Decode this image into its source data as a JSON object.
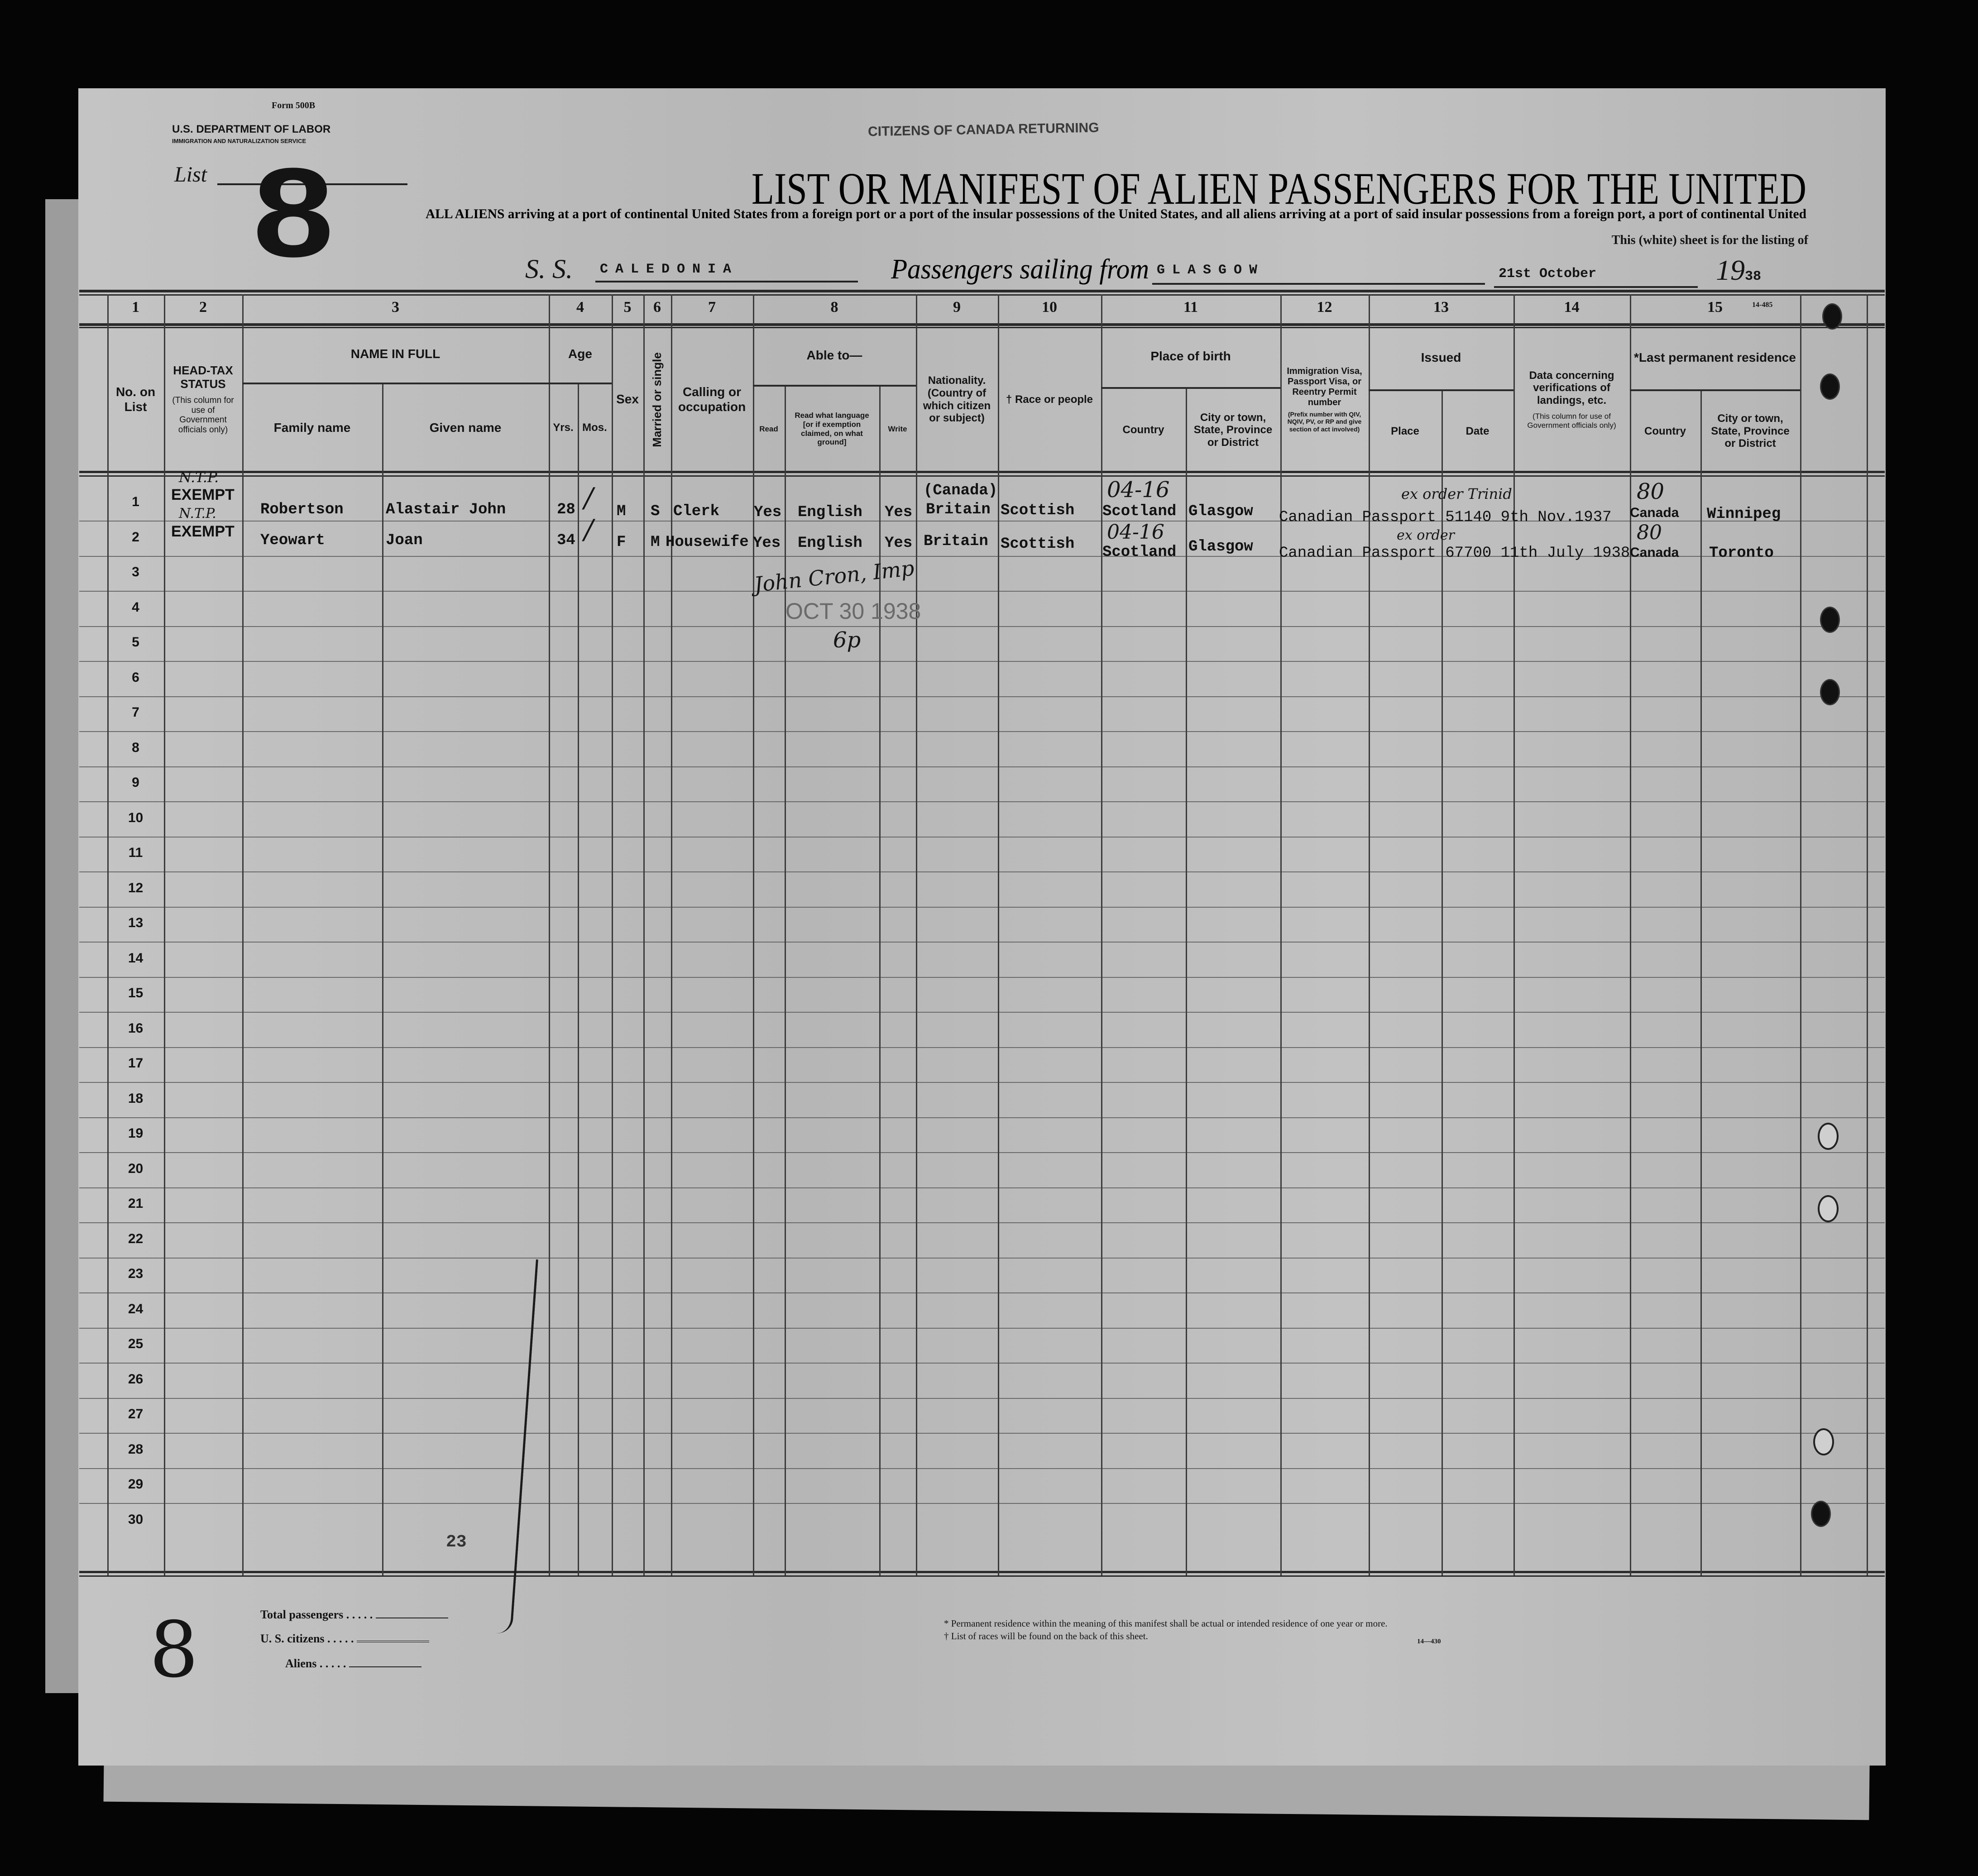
{
  "form": {
    "form_number": "Form 500B",
    "department": "U.S. DEPARTMENT OF LABOR",
    "service": "IMMIGRATION AND NATURALIZATION SERVICE",
    "list_label": "List",
    "list_number": "8",
    "stamp_top": "CITIZENS OF CANADA RETURNING",
    "title": "LIST OR MANIFEST OF ALIEN PASSENGERS FOR THE UNITED",
    "subtitle": "ALL ALIENS arriving at a port of continental United States from a foreign port or a port of the insular possessions of the United States, and all aliens arriving at a port of said insular possessions from a foreign port, a port of continental United",
    "subtitle2": "This (white) sheet is for the listing of",
    "corner_code": "14-485"
  },
  "voyage": {
    "ss_label": "S. S.",
    "ship": "CALEDONIA",
    "sailing_label": "Passengers sailing from",
    "port": "GLASGOW",
    "date": "21st October",
    "year_prefix": "19",
    "year_suffix": "38"
  },
  "column_numbers": [
    "1",
    "2",
    "3",
    "4",
    "5",
    "6",
    "7",
    "8",
    "9",
    "10",
    "11",
    "12",
    "13",
    "14",
    "15"
  ],
  "headers": {
    "no_on_list": "No. on List",
    "head_tax": "HEAD-TAX STATUS",
    "head_tax_note": "(This column for use of Government officials only)",
    "name_in_full": "NAME IN FULL",
    "family_name": "Family name",
    "given_name": "Given name",
    "age": "Age",
    "yrs": "Yrs.",
    "mos": "Mos.",
    "sex": "Sex",
    "married": "Married or single",
    "calling": "Calling or occupation",
    "able_to": "Able to—",
    "read": "Read",
    "read_language": "Read what language [or if exemption claimed, on what ground]",
    "write": "Write",
    "nationality": "Nationality. (Country of which citizen or subject)",
    "race": "† Race or people",
    "place_of_birth": "Place of birth",
    "pob_country": "Country",
    "pob_city": "City or town, State, Province or District",
    "visa": "Immigration Visa, Passport Visa, or Reentry Permit number",
    "visa_note": "(Prefix number with QIV, NQIV, PV, or RP and give section of act involved)",
    "issued": "Issued",
    "issued_place": "Place",
    "issued_date": "Date",
    "verifications": "Data concerning verifications of landings, etc.",
    "verifications_note": "(This column for use of Government officials only)",
    "last_residence": "*Last permanent residence",
    "res_country": "Country",
    "res_city": "City or town, State, Province or District"
  },
  "row_numbers": [
    "1",
    "2",
    "3",
    "4",
    "5",
    "6",
    "7",
    "8",
    "9",
    "10",
    "11",
    "12",
    "13",
    "14",
    "15",
    "16",
    "17",
    "18",
    "19",
    "20",
    "21",
    "22",
    "23",
    "24",
    "25",
    "26",
    "27",
    "28",
    "29",
    "30"
  ],
  "passengers": [
    {
      "head_tax": "EXEMPT",
      "head_tax_hand": "N.T.P.",
      "family_name": "Robertson",
      "given_name": "Alastair John",
      "age_yrs": "28",
      "sex": "M",
      "marital": "S",
      "occupation": "Clerk",
      "read": "Yes",
      "language": "English",
      "write": "Yes",
      "nationality_note": "(Canada)",
      "nationality": "Britain",
      "race": "Scottish",
      "birth_code": "04-16",
      "birth_country": "Scotland",
      "birth_city": "Glasgow",
      "passport": "Canadian Passport 51140 9th Nov.1937",
      "passport_hand": "ex order Trinid",
      "res_code": "80",
      "res_country": "Canada",
      "res_city": "Winnipeg"
    },
    {
      "head_tax": "EXEMPT",
      "head_tax_hand": "N.T.P.",
      "family_name": "Yeowart",
      "given_name": "Joan",
      "age_yrs": "34",
      "sex": "F",
      "marital": "M",
      "occupation": "Housewife",
      "read": "Yes",
      "language": "English",
      "write": "Yes",
      "nationality": "Britain",
      "race": "Scottish",
      "birth_code": "04-16",
      "birth_country": "Scotland",
      "birth_city": "Glasgow",
      "passport": "Canadian Passport 67700 11th July 1938",
      "passport_hand": "ex order",
      "res_code": "80",
      "res_country": "Canada",
      "res_city": "Toronto"
    }
  ],
  "annotations": {
    "signature": "John Cron, Imp",
    "date_stamp": "OCT 30 1938",
    "initials": "6p",
    "sheet_count": "23",
    "margin_number": "8"
  },
  "footer": {
    "total_passengers": "Total passengers",
    "us_citizens": "U. S. citizens",
    "aliens": "Aliens",
    "dots": ". . . . .",
    "note_residence": "* Permanent residence within the meaning of this manifest shall be actual or intended residence of one year or more.",
    "note_races": "† List of races will be found on the back of this sheet.",
    "form_code": "14—430"
  }
}
